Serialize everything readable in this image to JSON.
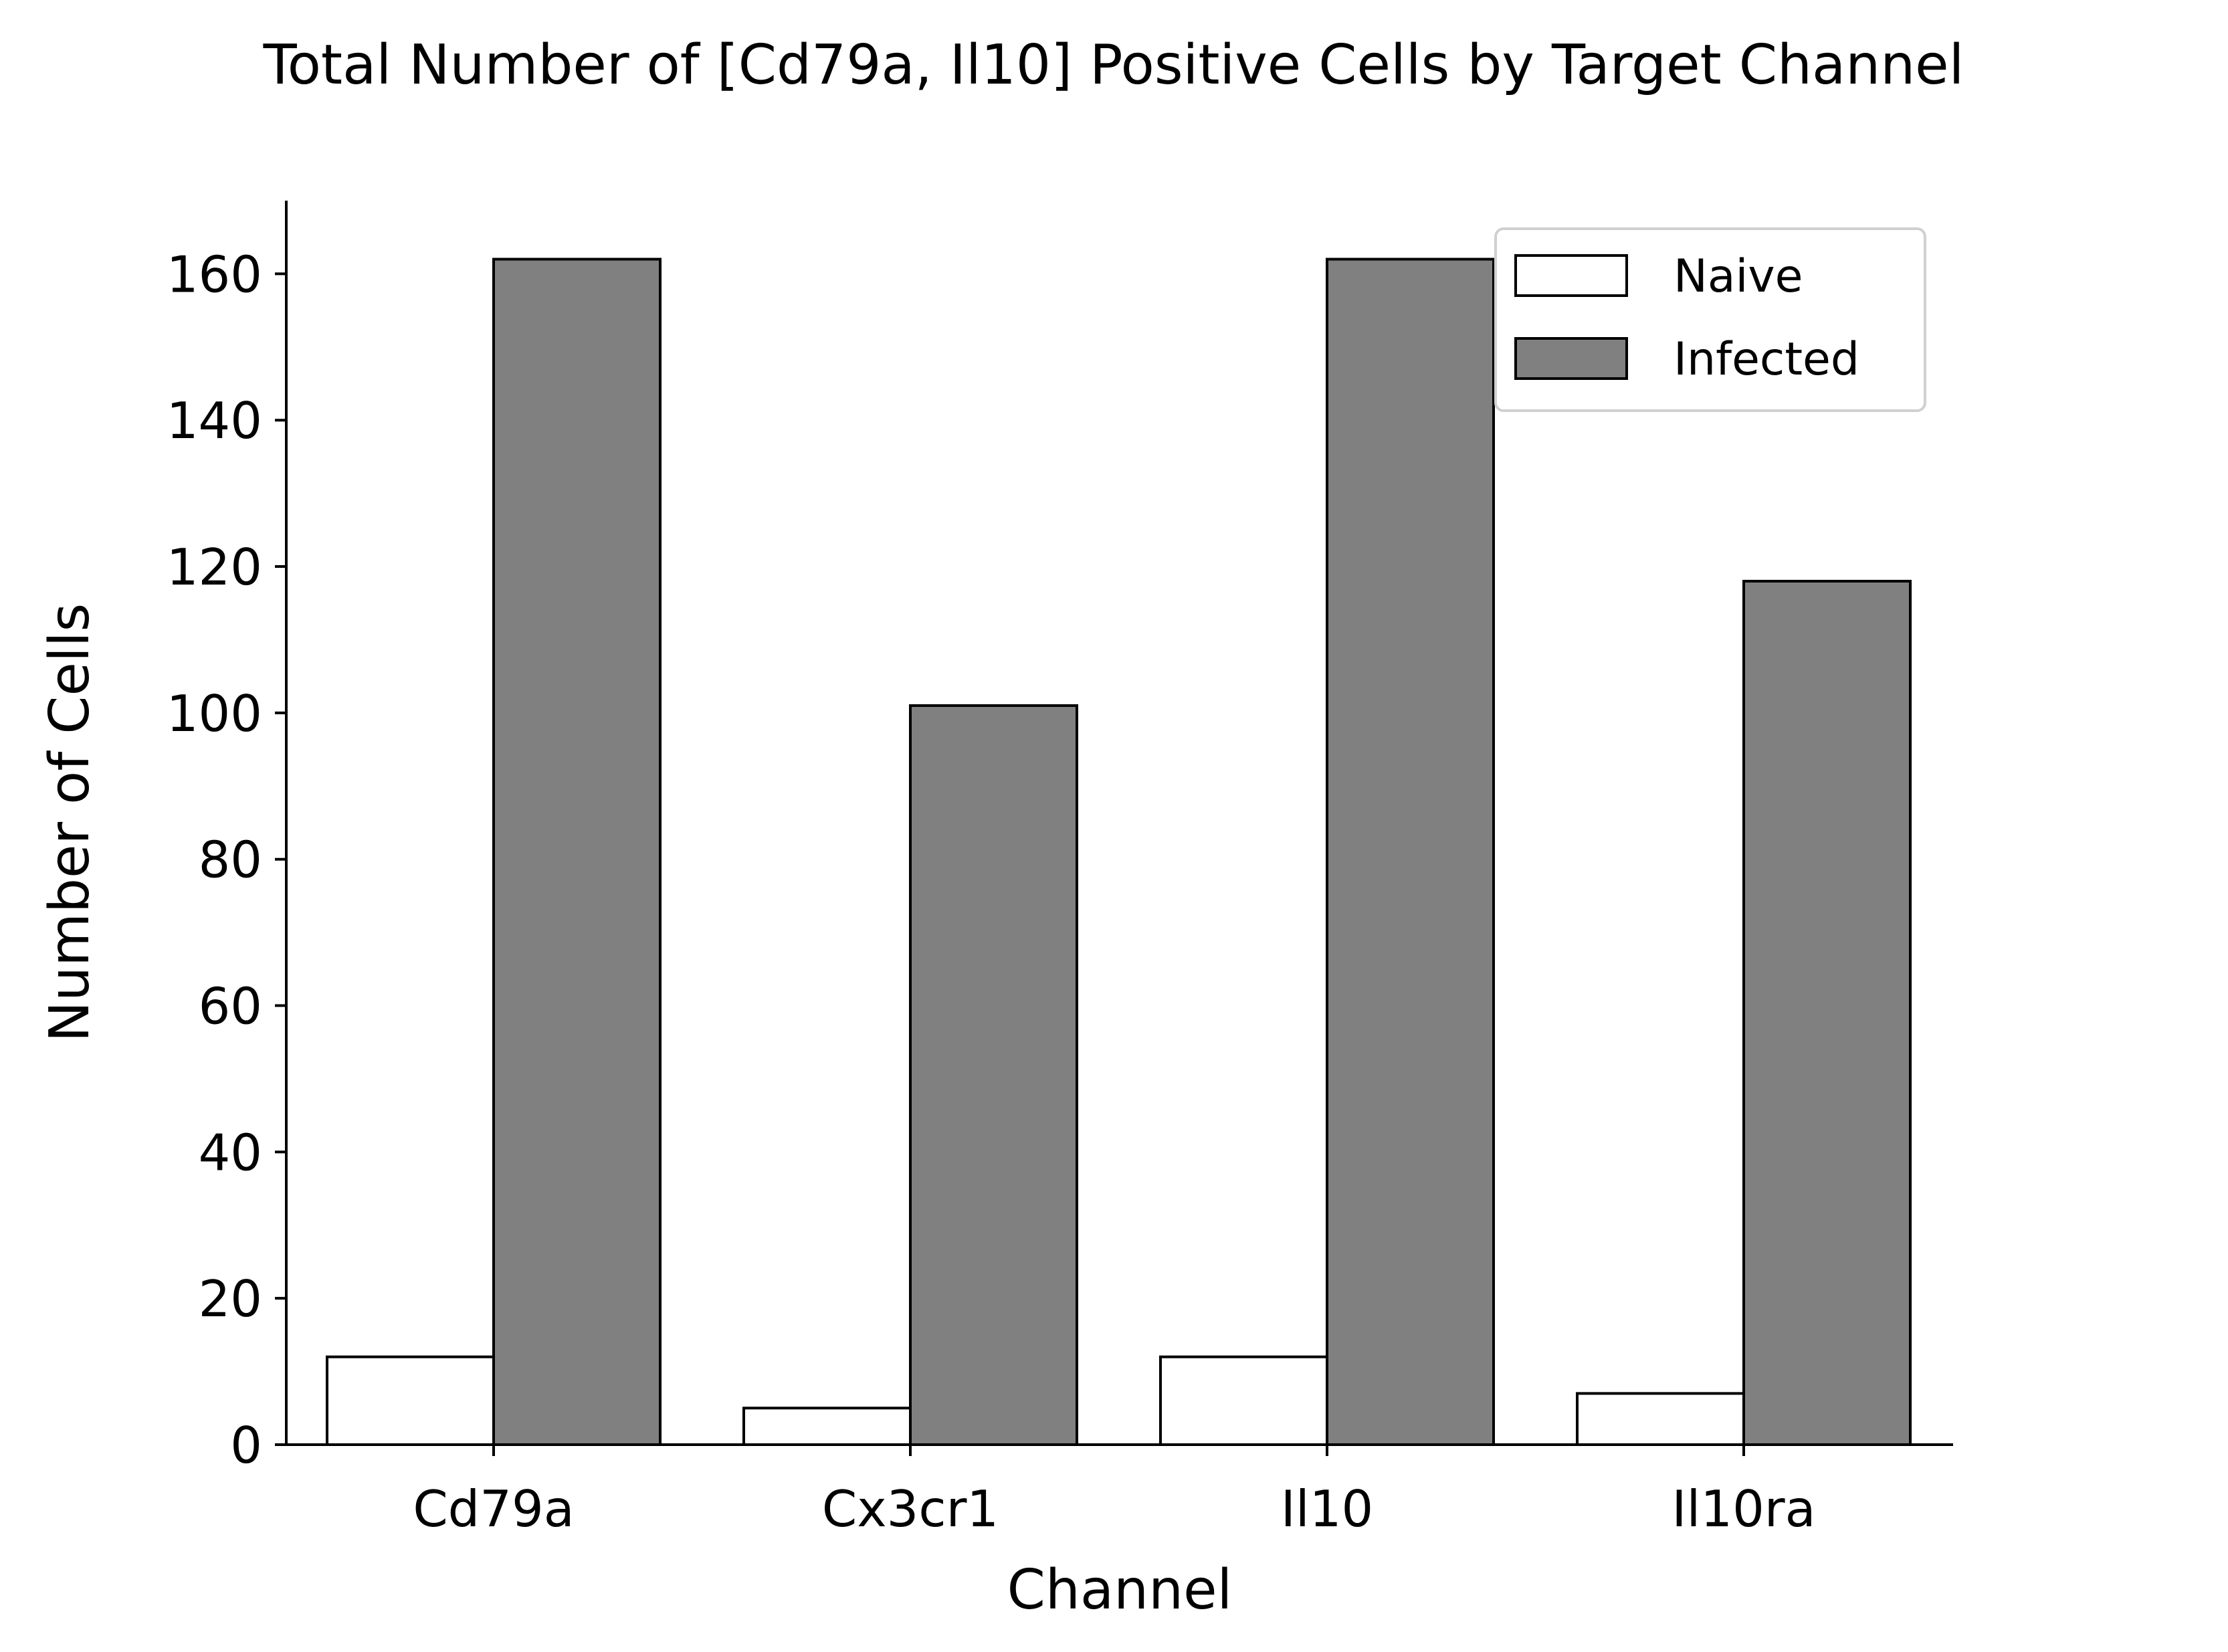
{
  "chart_data": {
    "type": "bar",
    "title": "Total Number of [Cd79a, Il10] Positive Cells by Target Channel",
    "xlabel": "Channel",
    "ylabel": "Number of Cells",
    "categories": [
      "Cd79a",
      "Cx3cr1",
      "Il10",
      "Il10ra"
    ],
    "series": [
      {
        "name": "Naive",
        "values": [
          12,
          5,
          12,
          7
        ],
        "color": "#ffffff"
      },
      {
        "name": "Infected",
        "values": [
          162,
          101,
          162,
          118
        ],
        "color": "#808080"
      }
    ],
    "ylim": [
      0,
      170
    ],
    "yticks": [
      0,
      20,
      40,
      60,
      80,
      100,
      120,
      140,
      160
    ],
    "grid": false,
    "legend_position": "top-right",
    "edge_color": "#000000"
  }
}
